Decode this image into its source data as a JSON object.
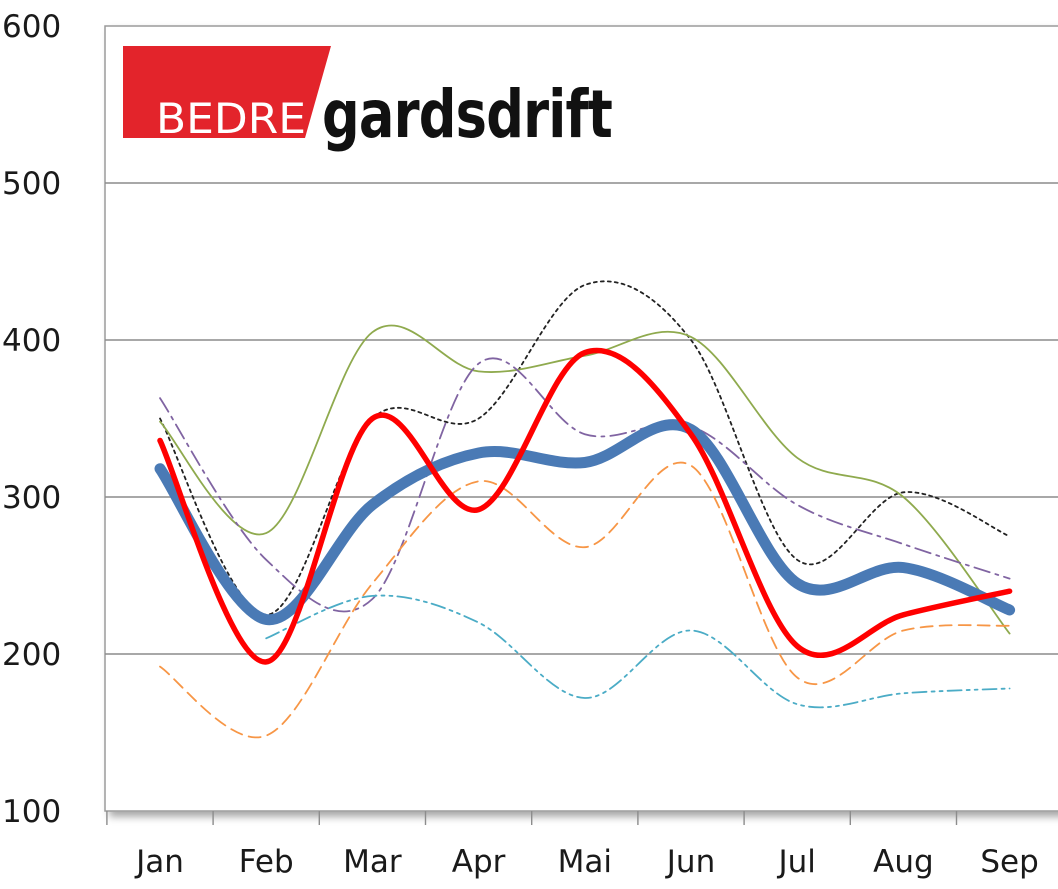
{
  "logo": {
    "part1": "BEDRE",
    "part2": "gardsdrift",
    "red_color": "#e3242b"
  },
  "chart_data": {
    "type": "line",
    "title": "",
    "xlabel": "",
    "ylabel": "",
    "ylim": [
      100,
      600
    ],
    "yticks": [
      100,
      200,
      300,
      400,
      500,
      600
    ],
    "grid": true,
    "categories": [
      "Jan",
      "Feb",
      "Mar",
      "Apr",
      "Mai",
      "Jun",
      "Jul",
      "Aug",
      "Sep"
    ],
    "series": [
      {
        "color": "#4a7ab5",
        "style": "solid",
        "width": "thick",
        "values": [
          318,
          222,
          295,
          328,
          322,
          343,
          245,
          255,
          228
        ]
      },
      {
        "color": "#ff0000",
        "style": "solid",
        "width": "bold",
        "values": [
          336,
          195,
          350,
          292,
          392,
          340,
          205,
          225,
          240
        ]
      },
      {
        "color": "#222222",
        "style": "dotted",
        "width": "thin",
        "values": [
          350,
          225,
          350,
          350,
          435,
          400,
          260,
          303,
          275
        ]
      },
      {
        "color": "#8faa4e",
        "style": "solid",
        "width": "thin",
        "values": [
          348,
          277,
          405,
          380,
          390,
          402,
          325,
          300,
          213
        ]
      },
      {
        "color": "#8064a2",
        "style": "dash-dot",
        "width": "thin",
        "values": [
          363,
          260,
          235,
          385,
          340,
          345,
          295,
          270,
          248
        ]
      },
      {
        "color": "#f79646",
        "style": "dashed",
        "width": "thin",
        "values": [
          192,
          148,
          245,
          310,
          268,
          320,
          185,
          215,
          218
        ]
      },
      {
        "color": "#4bacc6",
        "style": "dash-dot-dot",
        "width": "thin",
        "values": [
          null,
          210,
          237,
          220,
          172,
          215,
          168,
          175,
          178
        ]
      }
    ]
  }
}
